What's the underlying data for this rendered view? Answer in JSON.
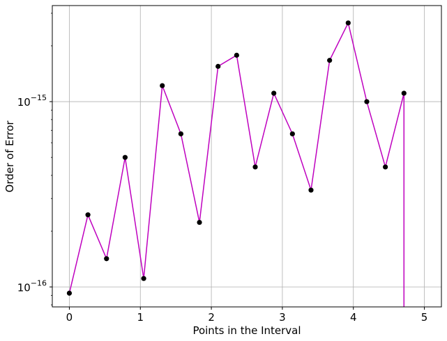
{
  "chart_data": {
    "type": "line",
    "title": "",
    "xlabel": "Points in the Interval",
    "ylabel": "Order of Error",
    "y_scale": "log",
    "xlim": [
      -0.24,
      5.24
    ],
    "ylim": [
      7.8e-17,
      3.3e-15
    ],
    "x_ticks": [
      0,
      1,
      2,
      3,
      4,
      5
    ],
    "x_tick_labels": [
      "0",
      "1",
      "2",
      "3",
      "4",
      "5"
    ],
    "y_ticks": [
      1e-16,
      1e-15
    ],
    "y_tick_labels": [
      {
        "base": "10",
        "exp": "−16"
      },
      {
        "base": "10",
        "exp": "−15"
      }
    ],
    "grid": true,
    "line_color": "#bf00bf",
    "marker_color": "#000000",
    "series": [
      {
        "x": [
          0,
          0.2618,
          0.5236,
          0.7854,
          1.0472,
          1.309,
          1.5708,
          1.8326,
          2.0944,
          2.3562,
          2.618,
          2.8798,
          3.1416,
          3.4034,
          3.6652,
          3.927,
          4.1888,
          4.4506,
          4.7124
        ],
        "y": [
          9.25e-17,
          2.45e-16,
          1.42e-16,
          5e-16,
          1.11e-16,
          1.22e-15,
          6.7e-16,
          2.23e-16,
          1.55e-15,
          1.78e-15,
          4.44e-16,
          1.11e-15,
          6.7e-16,
          3.33e-16,
          1.67e-15,
          2.66e-15,
          1e-15,
          4.44e-16,
          1.11e-15
        ],
        "final_drop_to": 0
      }
    ]
  }
}
